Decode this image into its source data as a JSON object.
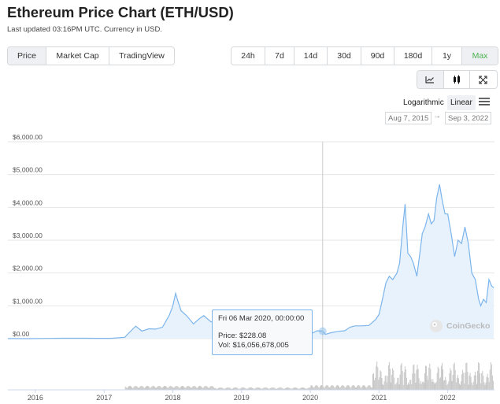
{
  "header": {
    "title": "Ethereum Price Chart (ETH/USD)",
    "subtitle": "Last updated 03:16PM UTC. Currency in USD."
  },
  "type_tabs": [
    {
      "label": "Price",
      "active": true
    },
    {
      "label": "Market Cap",
      "active": false
    },
    {
      "label": "TradingView",
      "active": false
    }
  ],
  "range_tabs": [
    {
      "label": "24h",
      "active": false
    },
    {
      "label": "7d",
      "active": false
    },
    {
      "label": "14d",
      "active": false
    },
    {
      "label": "30d",
      "active": false
    },
    {
      "label": "90d",
      "active": false
    },
    {
      "label": "180d",
      "active": false
    },
    {
      "label": "1y",
      "active": false
    },
    {
      "label": "Max",
      "active": true
    }
  ],
  "chart_style_icons": [
    "line-chart-icon",
    "candlestick-icon",
    "fullscreen-icon"
  ],
  "scale": {
    "logarithmic": "Logarithmic",
    "linear": "Linear",
    "selected": "Linear"
  },
  "date_range": {
    "from": "Aug 7, 2015",
    "to": "Sep 3, 2022",
    "arrow": "→"
  },
  "tooltip": {
    "date": "Fri 06 Mar 2020, 00:00:00",
    "price_label": "Price:",
    "price_value": "$228.08",
    "vol_label": "Vol:",
    "vol_value": "$16,056,678,005"
  },
  "watermark": "CoinGecko",
  "colors": {
    "line": "#7cb5ec",
    "area": "#e8f2fc",
    "green": "#4db14f",
    "volume": "#c8c8c8"
  },
  "chart_data": {
    "type": "line",
    "yticks": [
      "$0.00",
      "$1,000.00",
      "$2,000.00",
      "$3,000.00",
      "$4,000.00",
      "$5,000.00",
      "$6,000.00"
    ],
    "ylim": [
      0,
      6000
    ],
    "xticks": [
      "2016",
      "2017",
      "2018",
      "2019",
      "2020",
      "2021",
      "2022"
    ],
    "xlim": [
      2015.6,
      2022.68
    ],
    "series": [
      {
        "x": [
          2015.6,
          2015.9,
          2016.2,
          2016.4,
          2016.7,
          2016.9,
          2017.1,
          2017.3,
          2017.42,
          2017.46,
          2017.55,
          2017.65,
          2017.75,
          2017.85,
          2017.95,
          2018.0,
          2018.04,
          2018.08,
          2018.12,
          2018.2,
          2018.3,
          2018.38,
          2018.45,
          2018.55,
          2018.65,
          2018.75,
          2018.85,
          2018.95,
          2019.05,
          2019.2,
          2019.35,
          2019.45,
          2019.55,
          2019.7,
          2019.85,
          2020.0,
          2020.1,
          2020.18,
          2020.22,
          2020.3,
          2020.4,
          2020.5,
          2020.58,
          2020.65,
          2020.75,
          2020.85,
          2020.95,
          2021.0,
          2021.05,
          2021.1,
          2021.15,
          2021.2,
          2021.26,
          2021.3,
          2021.35,
          2021.38,
          2021.42,
          2021.46,
          2021.5,
          2021.55,
          2021.6,
          2021.63,
          2021.67,
          2021.72,
          2021.76,
          2021.8,
          2021.84,
          2021.88,
          2021.92,
          2021.96,
          2022.0,
          2022.05,
          2022.1,
          2022.15,
          2022.2,
          2022.25,
          2022.3,
          2022.35,
          2022.4,
          2022.45,
          2022.48,
          2022.52,
          2022.56,
          2022.6,
          2022.64,
          2022.67
        ],
        "y": [
          2,
          1,
          8,
          12,
          12,
          9,
          10,
          40,
          300,
          380,
          230,
          300,
          290,
          350,
          720,
          1000,
          1380,
          1100,
          850,
          700,
          450,
          600,
          700,
          520,
          450,
          290,
          180,
          110,
          120,
          140,
          260,
          300,
          220,
          180,
          190,
          140,
          240,
          228,
          130,
          180,
          220,
          240,
          350,
          390,
          390,
          400,
          580,
          740,
          1200,
          1700,
          1900,
          1800,
          2000,
          2300,
          3500,
          4100,
          2600,
          2500,
          2300,
          1900,
          2700,
          3200,
          3400,
          3800,
          3500,
          3600,
          4300,
          4700,
          4200,
          3800,
          3800,
          3200,
          2500,
          3000,
          2900,
          3400,
          2900,
          2000,
          1800,
          1200,
          1000,
          1200,
          1100,
          1800,
          1600,
          1550
        ]
      }
    ],
    "volume_note": "Vol"
  }
}
